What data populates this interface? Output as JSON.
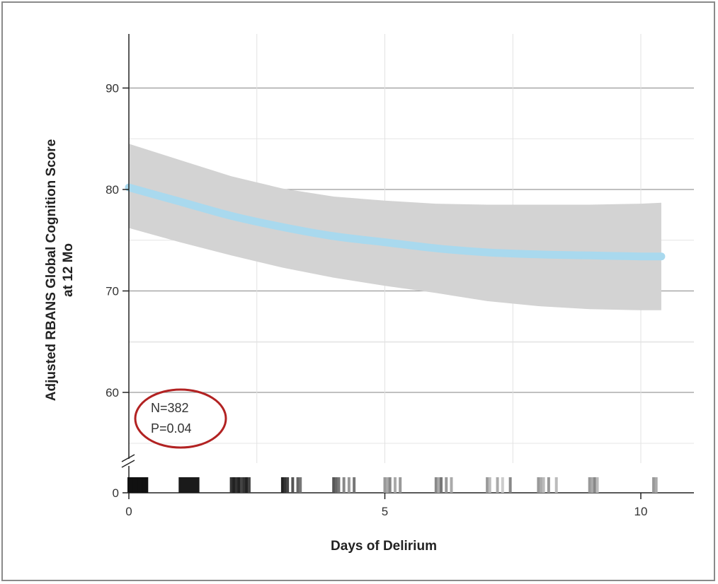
{
  "chart_data": {
    "type": "line",
    "title": "",
    "xlabel": "Days of Delirium",
    "ylabel_lines": [
      "Adjusted RBANS Global Cognition Score",
      "at 12 Mo"
    ],
    "xlim": [
      0,
      11
    ],
    "ylim": [
      55,
      95
    ],
    "y_axis_break": true,
    "y_axis_floor_tick": 0,
    "x_ticks": [
      0,
      5,
      10
    ],
    "y_ticks": [
      60,
      70,
      80,
      90
    ],
    "grid": true,
    "series": [
      {
        "x": [
          0,
          1,
          2,
          3,
          4,
          5,
          6,
          7,
          8,
          9,
          10,
          10.4
        ],
        "y": [
          80.2,
          78.8,
          77.4,
          76.3,
          75.4,
          74.8,
          74.2,
          73.8,
          73.6,
          73.5,
          73.4,
          73.4
        ],
        "ci_lower": [
          76.2,
          74.8,
          73.5,
          72.3,
          71.3,
          70.5,
          69.8,
          69.0,
          68.5,
          68.2,
          68.1,
          68.1
        ],
        "ci_upper": [
          84.5,
          82.9,
          81.3,
          80.1,
          79.3,
          78.9,
          78.6,
          78.5,
          78.5,
          78.5,
          78.6,
          78.7
        ]
      }
    ],
    "rug_x": [
      0.0,
      0.05,
      0.1,
      0.15,
      0.2,
      0.25,
      0.3,
      0.35,
      1.0,
      1.05,
      1.1,
      1.15,
      1.2,
      1.25,
      1.3,
      1.35,
      2.0,
      2.05,
      2.1,
      2.15,
      2.2,
      2.25,
      2.3,
      2.35,
      3.0,
      3.05,
      3.1,
      3.2,
      3.3,
      3.35,
      4.0,
      4.05,
      4.1,
      4.2,
      4.3,
      4.4,
      5.0,
      5.05,
      5.1,
      5.2,
      5.3,
      6.0,
      6.05,
      6.1,
      6.2,
      6.3,
      7.0,
      7.05,
      7.2,
      7.3,
      7.45,
      8.0,
      8.05,
      8.1,
      8.2,
      8.35,
      9.0,
      9.05,
      9.1,
      9.15,
      10.25,
      10.3
    ],
    "rug_shades": [
      "#111111",
      "#111111",
      "#111111",
      "#111111",
      "#111111",
      "#111111",
      "#111111",
      "#111111",
      "#1a1a1a",
      "#1a1a1a",
      "#1a1a1a",
      "#1a1a1a",
      "#1a1a1a",
      "#1a1a1a",
      "#1a1a1a",
      "#1a1a1a",
      "#333333",
      "#222222",
      "#333333",
      "#222222",
      "#444444",
      "#333333",
      "#222222",
      "#444444",
      "#222222",
      "#333333",
      "#444444",
      "#555555",
      "#666666",
      "#777777",
      "#555555",
      "#666666",
      "#777777",
      "#888888",
      "#999999",
      "#777777",
      "#999999",
      "#aaaaaa",
      "#888888",
      "#aaaaaa",
      "#999999",
      "#888888",
      "#aaaaaa",
      "#777777",
      "#999999",
      "#aaaaaa",
      "#999999",
      "#bbbbbb",
      "#aaaaaa",
      "#cccccc",
      "#888888",
      "#999999",
      "#aaaaaa",
      "#bbbbbb",
      "#999999",
      "#bbbbbb",
      "#999999",
      "#aaaaaa",
      "#888888",
      "#bbbbbb",
      "#999999",
      "#aaaaaa"
    ],
    "annotations": [
      "N=382",
      "P=0.04"
    ],
    "colors": {
      "line": "#a9d9ee",
      "band": "#d3d3d3",
      "grid": "#c8c8c8",
      "gridMajor": "#9a9a9a",
      "axis": "#222222",
      "highlight_circle": "#b22222"
    }
  }
}
